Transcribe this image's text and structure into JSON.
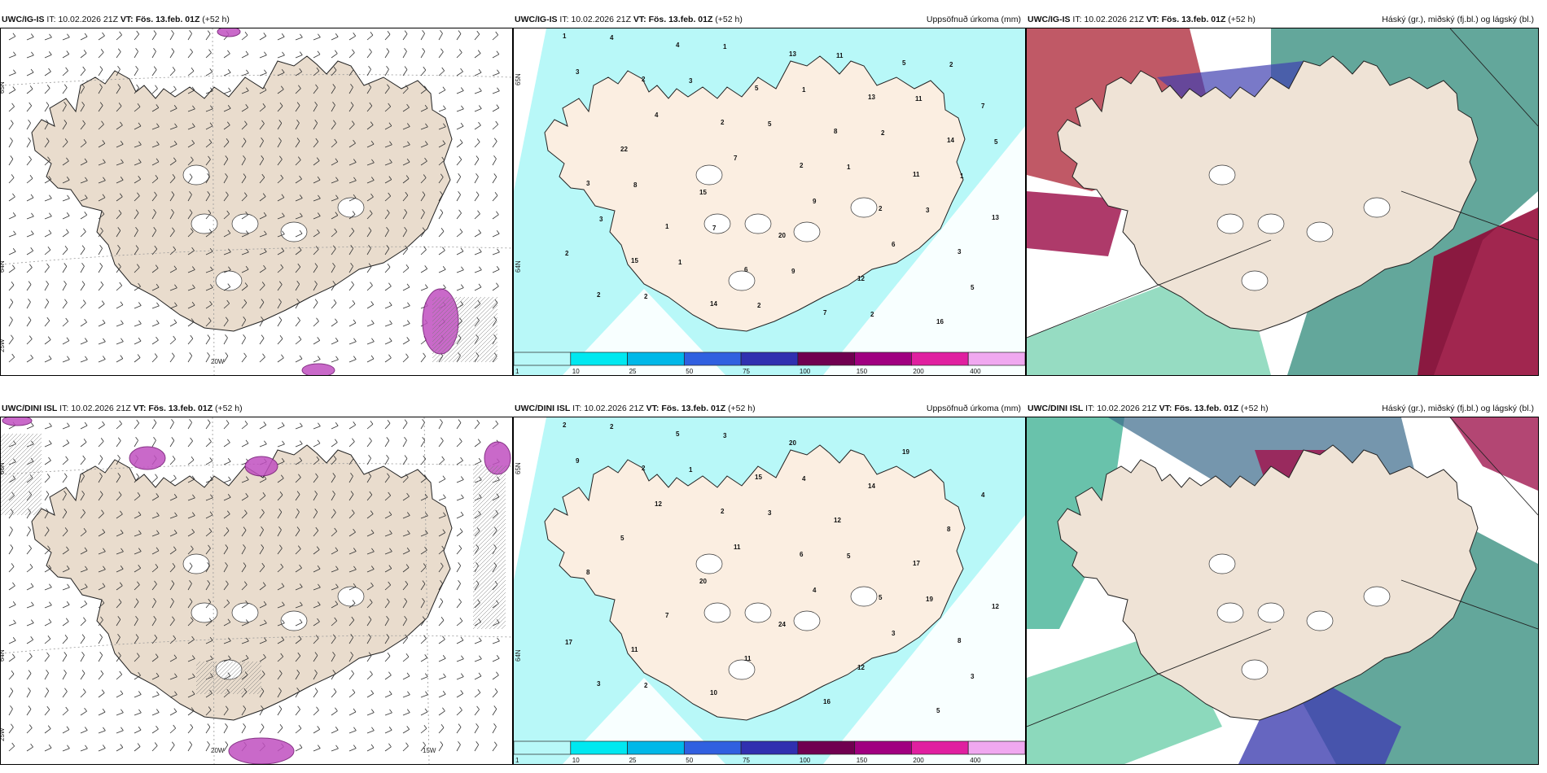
{
  "panels": [
    {
      "model": "UWC/IG-IS",
      "it_label": "IT:",
      "it": "10.02.2026 21Z",
      "vt_label": "VT:",
      "vt": "Fös. 13.feb. 01Z",
      "lead": "(+52 h)",
      "title_right": "",
      "type": "wind"
    },
    {
      "model": "UWC/IG-IS",
      "it_label": "IT:",
      "it": "10.02.2026 21Z",
      "vt_label": "VT:",
      "vt": "Fös. 13.feb. 01Z",
      "lead": "(+52 h)",
      "title_right": "Uppsöfnuð úrkoma (mm)",
      "type": "precip"
    },
    {
      "model": "UWC/IG-IS",
      "it_label": "IT:",
      "it": "10.02.2026 21Z",
      "vt_label": "VT:",
      "vt": "Fös. 13.feb. 01Z",
      "lead": "(+52 h)",
      "title_right": "Háský (gr.), miðský (fj.bl.) og lágský (bl.)",
      "type": "cloud"
    },
    {
      "model": "UWC/DINI ISL",
      "it_label": "IT:",
      "it": "10.02.2026 21Z",
      "vt_label": "VT:",
      "vt": "Fös. 13.feb. 01Z",
      "lead": "(+52 h)",
      "title_right": "",
      "type": "wind"
    },
    {
      "model": "UWC/DINI ISL",
      "it_label": "IT:",
      "it": "10.02.2026 21Z",
      "vt_label": "VT:",
      "vt": "Fös. 13.feb. 01Z",
      "lead": "(+52 h)",
      "title_right": "Uppsöfnuð úrkoma (mm)",
      "type": "precip"
    },
    {
      "model": "UWC/DINI ISL",
      "it_label": "IT:",
      "it": "10.02.2026 21Z",
      "vt_label": "VT:",
      "vt": "Fös. 13.feb. 01Z",
      "lead": "(+52 h)",
      "title_right": "Háský (gr.), miðský (fj.bl.) og lágský (bl.)",
      "type": "cloud"
    }
  ],
  "wind_axes": {
    "top": {
      "lon1": "20W",
      "lat1": "65N",
      "lat2": "64N",
      "lat3": "25W"
    },
    "bottom": {
      "lon1": "20W",
      "lon2": "15W",
      "lat1": "66N",
      "lat2": "64N",
      "lat3": "25W"
    }
  },
  "precip_axes": {
    "lat_top": "65N",
    "lat_mid": "64N"
  },
  "colorbar": {
    "labels": [
      "1",
      "10",
      "25",
      "50",
      "75",
      "100",
      "150",
      "200",
      "400"
    ],
    "colors": [
      "#b8f8f8",
      "#00e8f0",
      "#00b8e8",
      "#3060e0",
      "#3030b0",
      "#700050",
      "#a00080",
      "#e020a0",
      "#f0a8f0"
    ]
  },
  "precip_numbers_top": [
    "1",
    "2",
    "2",
    "2",
    "2",
    "3",
    "2",
    "4",
    "5",
    "8",
    "11",
    "13",
    "15",
    "14",
    "13",
    "13",
    "14",
    "3",
    "1",
    "6",
    "7",
    "5",
    "7",
    "22",
    "15",
    "20",
    "12",
    "16",
    "3",
    "4",
    "7",
    "9",
    "6",
    "5",
    "4",
    "3",
    "5",
    "1",
    "3",
    "2",
    "2",
    "1",
    "1",
    "2",
    "1",
    "3",
    "1",
    "2",
    "11",
    "11",
    "5",
    "8",
    "7",
    "9",
    "2",
    "2"
  ],
  "precip_numbers_bottom": [
    "2",
    "2",
    "2",
    "6",
    "5",
    "8",
    "3",
    "5",
    "15",
    "12",
    "17",
    "12",
    "11",
    "10",
    "20",
    "14",
    "8",
    "8",
    "7",
    "11",
    "16",
    "19",
    "4",
    "5",
    "20",
    "24",
    "12",
    "5",
    "9",
    "12",
    "11",
    "4",
    "3",
    "3",
    "2",
    "1",
    "3",
    "5",
    "19",
    "17",
    "2",
    "3",
    "4"
  ]
}
